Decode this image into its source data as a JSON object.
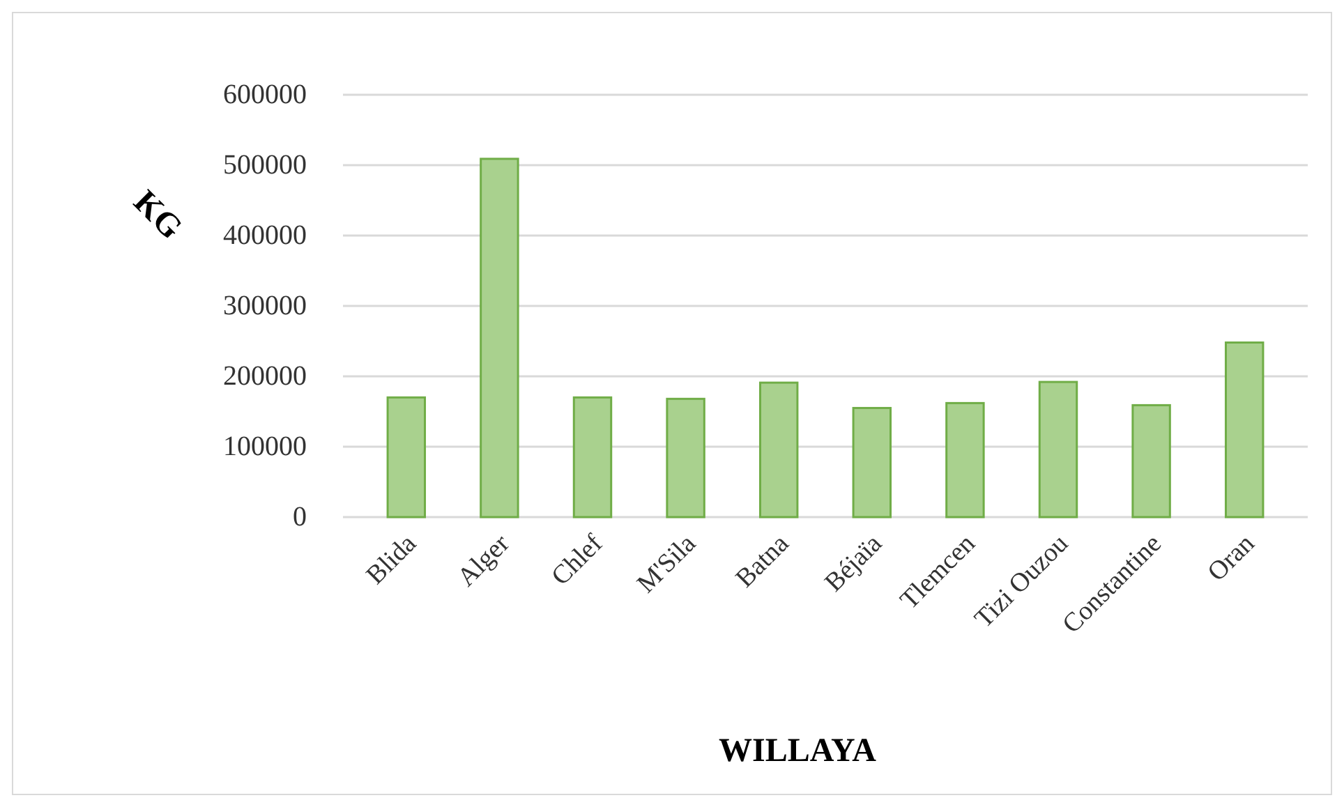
{
  "chart_data": {
    "type": "bar",
    "xlabel": "WILLAYA",
    "ylabel": "KG",
    "categories": [
      "Blida",
      "Alger",
      "Chlef",
      "M'Sila",
      "Batna",
      "Béjaïa",
      "Tlemcen",
      "Tizi Ouzou",
      "Constantine",
      "Oran"
    ],
    "values": [
      170000,
      509000,
      170000,
      168000,
      191000,
      155000,
      162000,
      192000,
      159000,
      248000
    ],
    "color": "#a9d18e",
    "ylim": [
      0,
      600000
    ],
    "yticks": [
      0,
      100000,
      200000,
      300000,
      400000,
      500000,
      600000
    ],
    "grid": "y"
  }
}
